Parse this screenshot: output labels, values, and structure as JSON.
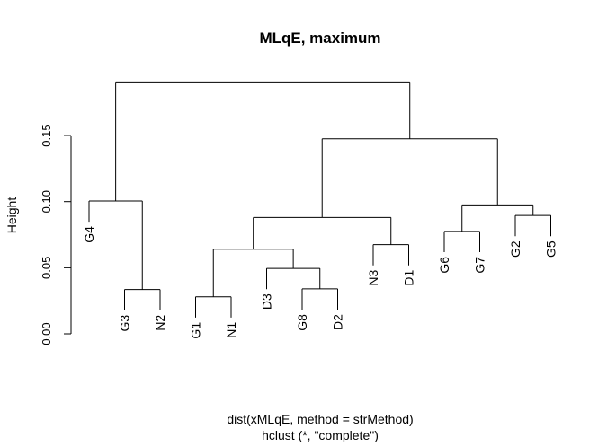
{
  "chart_data": {
    "type": "dendrogram",
    "title": "MLqE, maximum",
    "ylabel": "Height",
    "xlabel_lines": [
      "dist(xMLqE, method = strMethod)",
      "hclust (*, \"complete\")"
    ],
    "ylim": [
      0,
      0.19
    ],
    "yticks": [
      {
        "value": 0.0,
        "label": "0.00"
      },
      {
        "value": 0.05,
        "label": "0.05"
      },
      {
        "value": 0.1,
        "label": "0.10"
      },
      {
        "value": 0.15,
        "label": "0.15"
      }
    ],
    "hang": 0.0157,
    "leaf_order": [
      "G4",
      "G3",
      "N2",
      "G1",
      "N1",
      "D3",
      "G8",
      "D2",
      "N3",
      "D1",
      "G6",
      "G7",
      "G2",
      "G5"
    ],
    "merges": [
      {
        "id": "m1",
        "height": 0.0335,
        "left": "G3",
        "right": "N2"
      },
      {
        "id": "m2",
        "height": 0.1005,
        "left": "G4",
        "right": "m1"
      },
      {
        "id": "m3",
        "height": 0.028,
        "left": "G1",
        "right": "N1"
      },
      {
        "id": "m4",
        "height": 0.034,
        "left": "G8",
        "right": "D2"
      },
      {
        "id": "m5",
        "height": 0.0495,
        "left": "D3",
        "right": "m4"
      },
      {
        "id": "m6",
        "height": 0.064,
        "left": "m3",
        "right": "m5"
      },
      {
        "id": "m7",
        "height": 0.0675,
        "left": "N3",
        "right": "D1"
      },
      {
        "id": "m8",
        "height": 0.088,
        "left": "m6",
        "right": "m7"
      },
      {
        "id": "m9",
        "height": 0.0775,
        "left": "G6",
        "right": "G7"
      },
      {
        "id": "m10",
        "height": 0.0895,
        "left": "G2",
        "right": "G5"
      },
      {
        "id": "m11",
        "height": 0.0975,
        "left": "m9",
        "right": "m10"
      },
      {
        "id": "m12",
        "height": 0.1475,
        "left": "m8",
        "right": "m11"
      },
      {
        "id": "m13",
        "height": 0.1905,
        "left": "m2",
        "right": "m12"
      }
    ]
  }
}
